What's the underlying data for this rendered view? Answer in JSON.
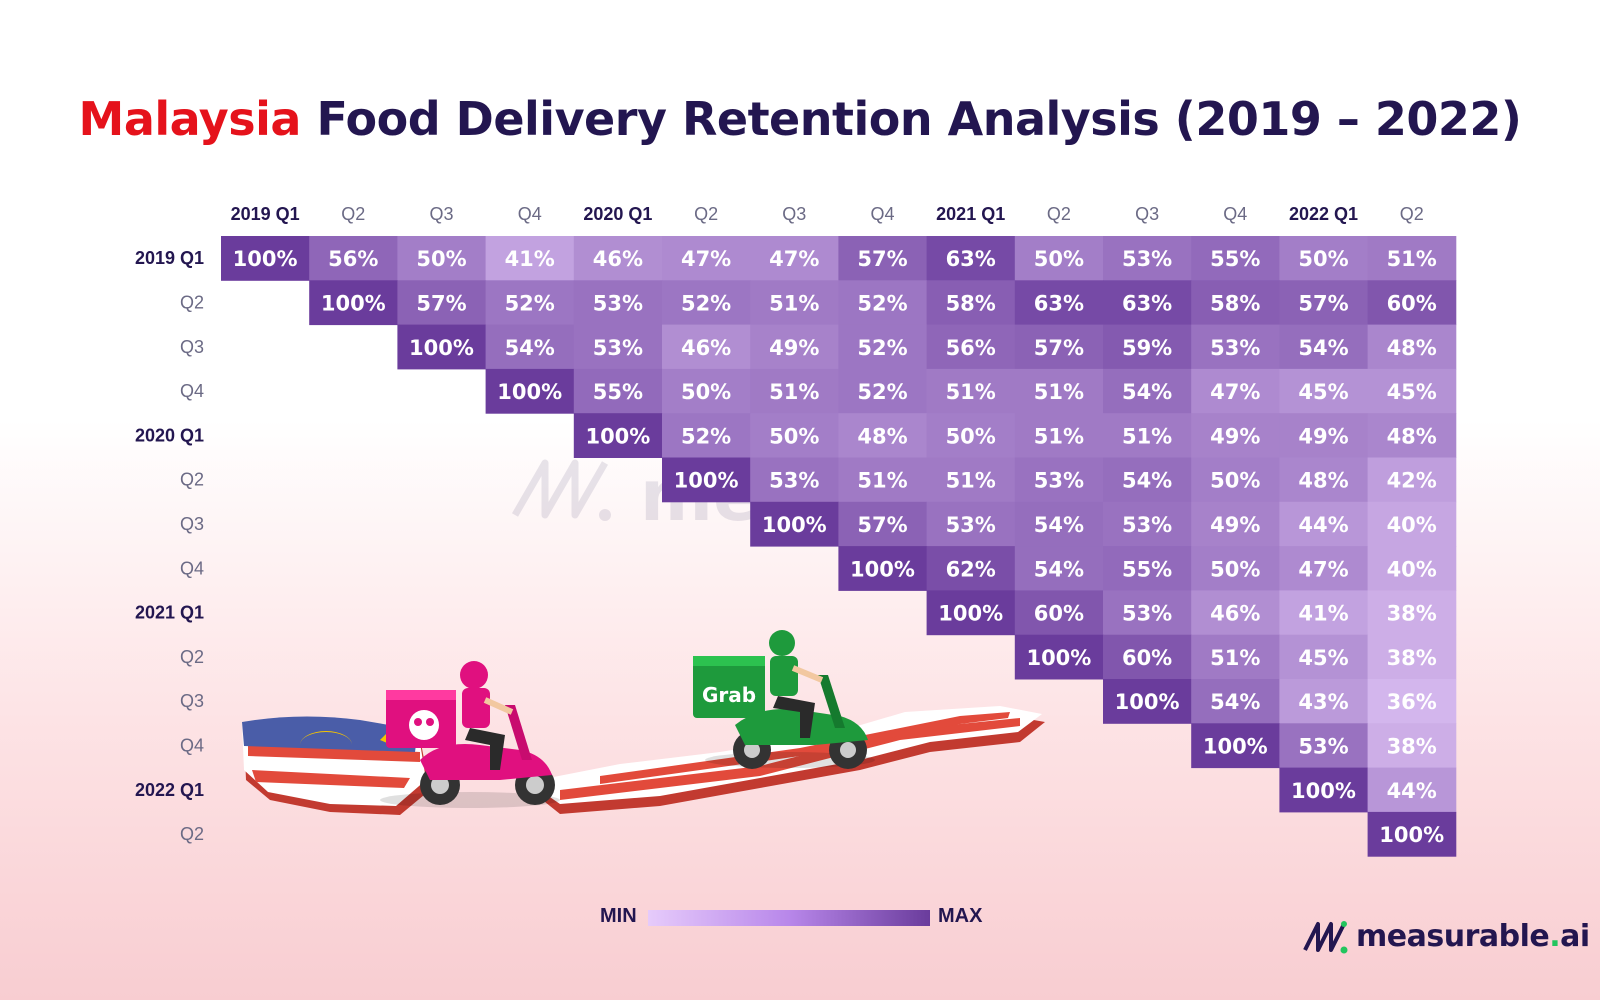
{
  "title": {
    "highlight": "Malaysia",
    "rest": " Food Delivery Retention Analysis (2019 – 2022)"
  },
  "chart_data": {
    "type": "heatmap",
    "title": "Malaysia Food Delivery Retention Analysis (2019 – 2022)",
    "column_labels": [
      "2019 Q1",
      "Q2",
      "Q3",
      "Q4",
      "2020 Q1",
      "Q2",
      "Q3",
      "Q4",
      "2021 Q1",
      "Q2",
      "Q3",
      "Q4",
      "2022 Q1",
      "Q2"
    ],
    "row_labels": [
      "2019 Q1",
      "Q2",
      "Q3",
      "Q4",
      "2020 Q1",
      "Q2",
      "Q3",
      "Q4",
      "2021 Q1",
      "Q2",
      "Q3",
      "Q4",
      "2022 Q1",
      "Q2"
    ],
    "values": [
      [
        100,
        56,
        50,
        41,
        46,
        47,
        47,
        57,
        63,
        50,
        53,
        55,
        50,
        51
      ],
      [
        null,
        100,
        57,
        52,
        53,
        52,
        51,
        52,
        58,
        63,
        63,
        58,
        57,
        60
      ],
      [
        null,
        null,
        100,
        54,
        53,
        46,
        49,
        52,
        56,
        57,
        59,
        53,
        54,
        48
      ],
      [
        null,
        null,
        null,
        100,
        55,
        50,
        51,
        52,
        51,
        51,
        54,
        47,
        45,
        45
      ],
      [
        null,
        null,
        null,
        null,
        100,
        52,
        50,
        48,
        50,
        51,
        51,
        49,
        49,
        48
      ],
      [
        null,
        null,
        null,
        null,
        null,
        100,
        53,
        51,
        51,
        53,
        54,
        50,
        48,
        42
      ],
      [
        null,
        null,
        null,
        null,
        null,
        null,
        100,
        57,
        53,
        54,
        53,
        49,
        44,
        40
      ],
      [
        null,
        null,
        null,
        null,
        null,
        null,
        null,
        100,
        62,
        54,
        55,
        50,
        47,
        40
      ],
      [
        null,
        null,
        null,
        null,
        null,
        null,
        null,
        null,
        100,
        60,
        53,
        46,
        41,
        38
      ],
      [
        null,
        null,
        null,
        null,
        null,
        null,
        null,
        null,
        null,
        100,
        60,
        51,
        45,
        38
      ],
      [
        null,
        null,
        null,
        null,
        null,
        null,
        null,
        null,
        null,
        null,
        100,
        54,
        43,
        36
      ],
      [
        null,
        null,
        null,
        null,
        null,
        null,
        null,
        null,
        null,
        null,
        null,
        100,
        53,
        38
      ],
      [
        null,
        null,
        null,
        null,
        null,
        null,
        null,
        null,
        null,
        null,
        null,
        null,
        100,
        44
      ],
      [
        null,
        null,
        null,
        null,
        null,
        null,
        null,
        null,
        null,
        null,
        null,
        null,
        null,
        100
      ]
    ],
    "value_suffix": "%",
    "legend": {
      "min_label": "MIN",
      "max_label": "MAX"
    },
    "colors": {
      "min": "#e6cbfb",
      "max": "#6a3c9c",
      "year_label": "#231650",
      "quarter_label": "#6b6a85"
    }
  },
  "illustration": {
    "grab_label": "Grab"
  },
  "watermark": {
    "text": "measurable.ai"
  },
  "brand": {
    "name_main": "measurable",
    "name_dot": ".",
    "name_tail": "ai"
  }
}
